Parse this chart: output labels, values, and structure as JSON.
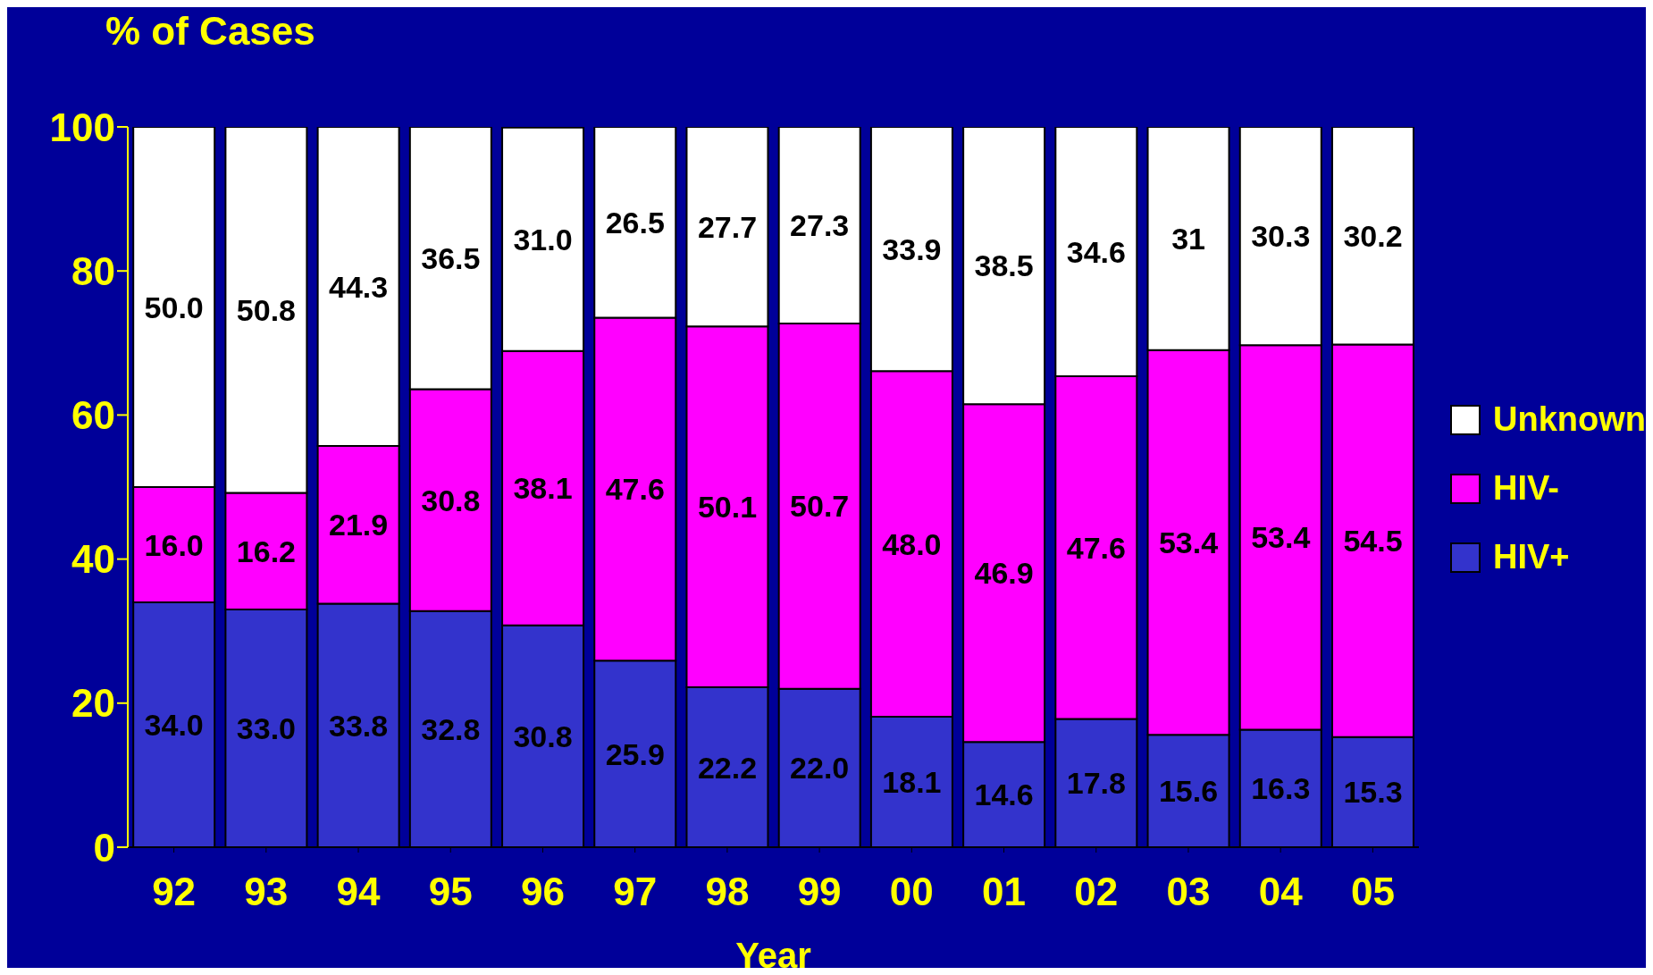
{
  "chart_data": {
    "type": "bar",
    "stacked": true,
    "ylabel": "% of Cases",
    "xlabel": "Year",
    "categories": [
      "92",
      "93",
      "94",
      "95",
      "96",
      "97",
      "98",
      "99",
      "00",
      "01",
      "02",
      "03",
      "04",
      "05"
    ],
    "series": [
      {
        "name": "HIV+",
        "color": "#3333cc",
        "values": [
          34.0,
          33.0,
          33.8,
          32.8,
          30.8,
          25.9,
          22.2,
          22.0,
          18.1,
          14.6,
          17.8,
          15.6,
          16.3,
          15.3
        ],
        "value_labels": [
          "34.0",
          "33.0",
          "33.8",
          "32.8",
          "30.8",
          "25.9",
          "22.2",
          "22.0",
          "18.1",
          "14.6",
          "17.8",
          "15.6",
          "16.3",
          "15.3"
        ]
      },
      {
        "name": "HIV-",
        "color": "#ff00ff",
        "values": [
          16.0,
          16.2,
          21.9,
          30.8,
          38.1,
          47.6,
          50.1,
          50.7,
          48.0,
          46.9,
          47.6,
          53.4,
          53.4,
          54.5
        ],
        "value_labels": [
          "16.0",
          "16.2",
          "21.9",
          "30.8",
          "38.1",
          "47.6",
          "50.1",
          "50.7",
          "48.0",
          "46.9",
          "47.6",
          "53.4",
          "53.4",
          "54.5"
        ]
      },
      {
        "name": "Unknown",
        "color": "#ffffff",
        "values": [
          50.0,
          50.8,
          44.3,
          36.5,
          31.0,
          26.5,
          27.7,
          27.3,
          33.9,
          38.5,
          34.6,
          31,
          30.3,
          30.2
        ],
        "value_labels": [
          "50.0",
          "50.8",
          "44.3",
          "36.5",
          "31.0",
          "26.5",
          "27.7",
          "27.3",
          "33.9",
          "38.5",
          "34.6",
          "31",
          "30.3",
          "30.2"
        ]
      }
    ],
    "ylim": [
      0,
      100
    ],
    "yticks": [
      0,
      20,
      40,
      60,
      80,
      100
    ],
    "legend": "right",
    "grid": false
  }
}
